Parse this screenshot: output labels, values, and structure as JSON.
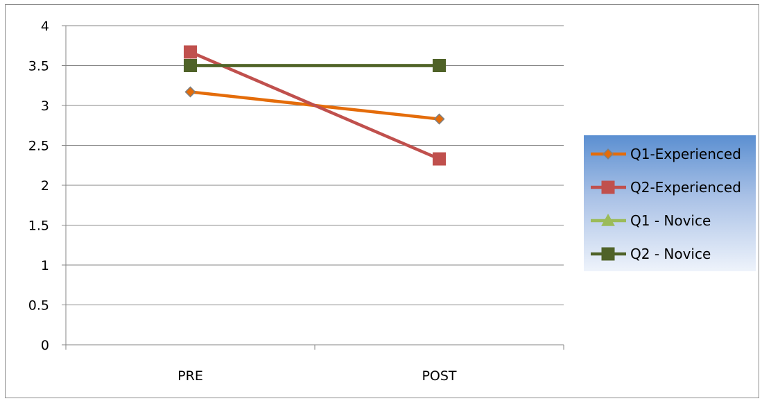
{
  "chart_data": {
    "type": "line",
    "categories": [
      "PRE",
      "POST"
    ],
    "ylim": [
      0,
      4
    ],
    "yticks": [
      0,
      0.5,
      1,
      1.5,
      2,
      2.5,
      3,
      3.5,
      4
    ],
    "ytick_labels": [
      "0",
      "0.5",
      "1",
      "1.5",
      "2",
      "2.5",
      "3",
      "3.5",
      "4"
    ],
    "grid": true,
    "legend_position": "right",
    "series": [
      {
        "name": "Q1-Experienced",
        "values": [
          3.17,
          2.83
        ],
        "color": "#e46c0a",
        "marker": "diamond",
        "marker_fill": "#e46c0a",
        "marker_stroke": "#7f7f7f"
      },
      {
        "name": "Q2-Experienced",
        "values": [
          3.67,
          2.33
        ],
        "color": "#c0504d",
        "marker": "square",
        "marker_fill": "#c0504d",
        "marker_stroke": "#c0504d"
      },
      {
        "name": "Q1 - Novice",
        "values": [
          3.5,
          3.5
        ],
        "color": "#9bbb59",
        "marker": "triangle",
        "marker_fill": "#9bbb59",
        "marker_stroke": "#9bbb59"
      },
      {
        "name": "Q2 - Novice",
        "values": [
          3.5,
          3.5
        ],
        "color": "#4f6228",
        "marker": "square",
        "marker_fill": "#4f6228",
        "marker_stroke": "#4f6228"
      }
    ]
  }
}
